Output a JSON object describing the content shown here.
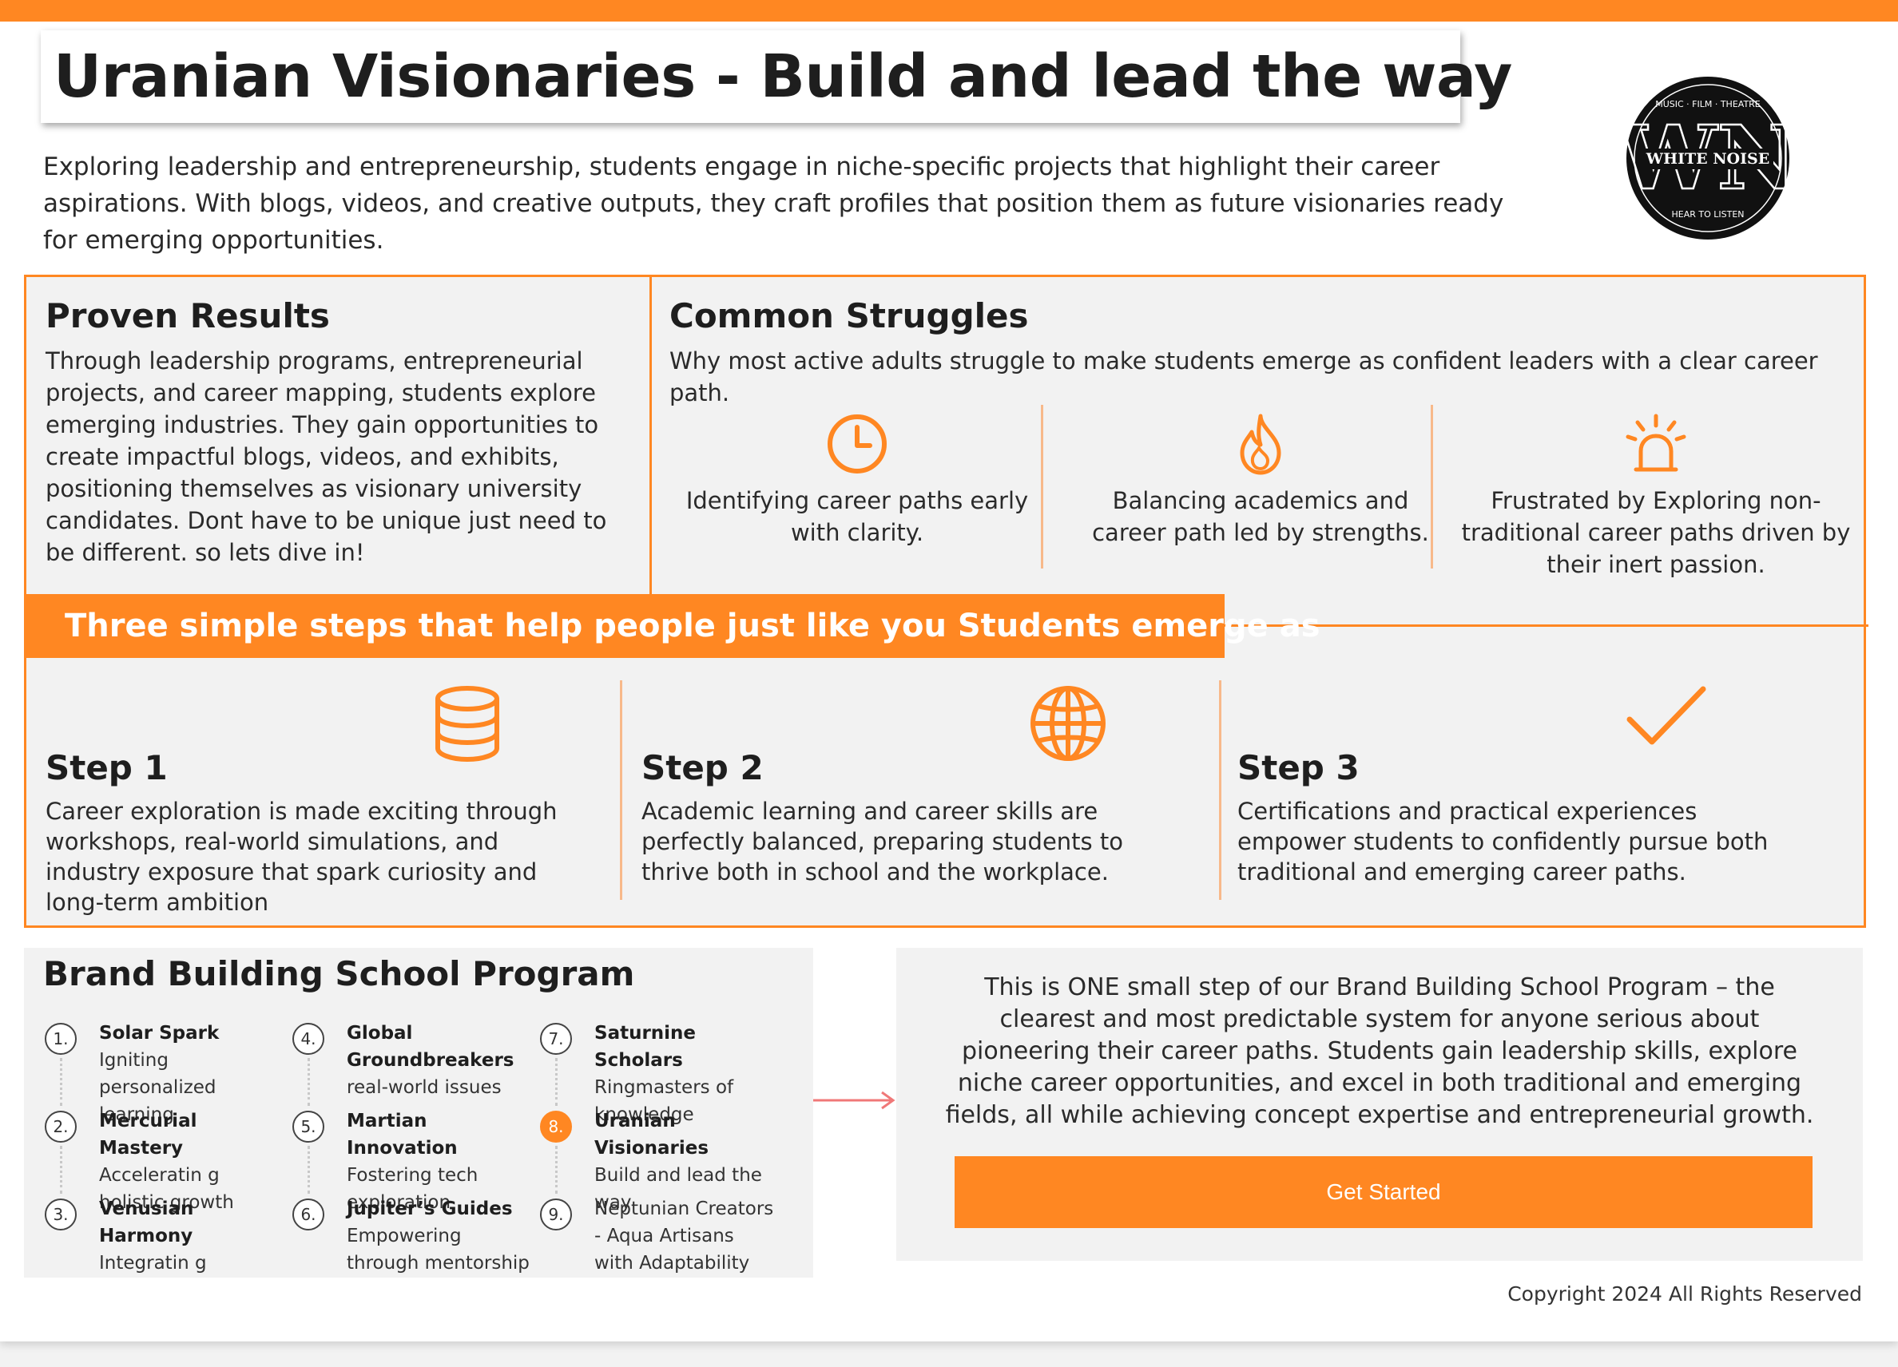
{
  "header": {
    "title": "Uranian Visionaries - Build and lead the way",
    "intro": "Exploring leadership and entrepreneurship, students engage in niche-specific projects that highlight their career aspirations. With blogs, videos, and creative outputs, they craft profiles that position them as future visionaries ready for emerging opportunities."
  },
  "logo": {
    "initials": "WN",
    "name": "WHITE NOISE",
    "top_text": "MUSIC · FILM · THEATRE",
    "bottom_text": "HEAR TO LISTEN"
  },
  "proven": {
    "title": "Proven Results",
    "body": "Through leadership programs, entrepreneurial projects, and career mapping, students explore emerging industries. They gain opportunities to create impactful blogs, videos, and exhibits, positioning themselves as visionary university candidates. Dont have to be unique just need to be different. so lets dive in!"
  },
  "struggles": {
    "title": "Common Struggles",
    "subtitle": "Why most active adults struggle to make students emerge as confident leaders with a clear career path.",
    "items": [
      {
        "icon": "clock-icon",
        "text": "Identifying career paths early with clarity."
      },
      {
        "icon": "flame-icon",
        "text": "Balancing academics and career path led by strengths."
      },
      {
        "icon": "alarm-icon",
        "text": "Frustrated by Exploring non-traditional career paths driven by their inert passion."
      }
    ]
  },
  "steps": {
    "heading": "Three simple steps that help people just like you Students emerge as",
    "items": [
      {
        "label": "Step 1",
        "icon": "database-icon",
        "text": "Career exploration is made exciting through workshops, real-world simulations, and industry exposure that spark curiosity and long-term ambition"
      },
      {
        "label": "Step 2",
        "icon": "globe-icon",
        "text": "Academic learning and career skills are perfectly balanced, preparing students to thrive both in school and the workplace."
      },
      {
        "label": "Step 3",
        "icon": "checkmark-icon",
        "text": "Certifications and practical experiences empower students to confidently pursue both traditional and emerging career paths."
      }
    ]
  },
  "program": {
    "title": "Brand Building School Program",
    "items": [
      {
        "num": "1.",
        "name": "Solar Spark",
        "desc": " Igniting personalized learning"
      },
      {
        "num": "2.",
        "name": "Mercurial Mastery",
        "desc": " Acceleratin g holistic growth"
      },
      {
        "num": "3.",
        "name": "Venusian Harmony",
        "desc": "  Integratin g creativity and"
      },
      {
        "num": "4.",
        "name": "Global Groundbreakers",
        "desc": " real-world issues"
      },
      {
        "num": "5.",
        "name": "Martian Innovation",
        "desc": " Fostering tech exploration"
      },
      {
        "num": "6.",
        "name": "Jupiter’s Guides",
        "desc": " Empowering through mentorship"
      },
      {
        "num": "7.",
        "name": "Saturnine Scholars",
        "desc": " Ringmasters of knowledge"
      },
      {
        "num": "8.",
        "name": "Uranian Visionaries",
        "desc": " Build and lead the way"
      },
      {
        "num": "9.",
        "name": "",
        "desc": "Neptunian Creators - Aqua Artisans with Adaptability"
      }
    ],
    "active_index": 7
  },
  "cta": {
    "text": "This is ONE small step of our Brand Building School Program – the clearest and most predictable system for anyone serious about pioneering their career paths. Students gain leadership skills, explore niche career opportunities, and excel in both traditional and emerging fields, all while achieving concept expertise and entrepreneurial growth.",
    "button": "Get Started"
  },
  "footer": {
    "copyright": "Copyright 2024 All Rights Reserved"
  },
  "colors": {
    "accent": "#ff8722",
    "panel": "#f2f2f2",
    "text": "#222222"
  }
}
